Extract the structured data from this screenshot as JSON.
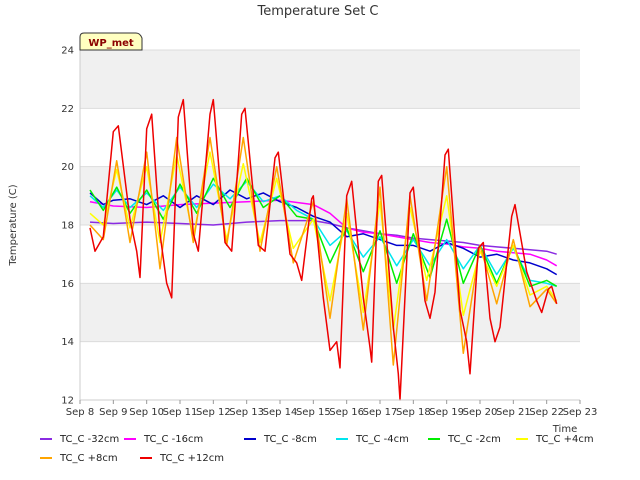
{
  "chart_data": {
    "type": "line",
    "title": "Temperature Set C",
    "xlabel": "Time",
    "ylabel": "Temperature (C)",
    "ylim": [
      12,
      24
    ],
    "y_ticks": [
      12,
      14,
      16,
      18,
      20,
      22,
      24
    ],
    "x_ticks": [
      "Sep 8",
      "Sep 9",
      "Sep 10",
      "Sep 11",
      "Sep 12",
      "Sep 13",
      "Sep 14",
      "Sep 15",
      "Sep 16",
      "Sep 17",
      "Sep 18",
      "Sep 19",
      "Sep 20",
      "Sep 21",
      "Sep 22",
      "Sep 23"
    ],
    "xlim_days": [
      8,
      23
    ],
    "badge": "WP_met",
    "grid": "horizontal bands",
    "legend_position": "bottom",
    "series": [
      {
        "name": "TC_C -32cm",
        "color": "#8a2be2",
        "points": [
          [
            8.3,
            18.1
          ],
          [
            9,
            18.05
          ],
          [
            10,
            18.1
          ],
          [
            11,
            18.05
          ],
          [
            12,
            18.0
          ],
          [
            13,
            18.1
          ],
          [
            14,
            18.15
          ],
          [
            15,
            18.15
          ],
          [
            15.5,
            18.05
          ],
          [
            16,
            17.9
          ],
          [
            16.5,
            17.8
          ],
          [
            17,
            17.7
          ],
          [
            17.5,
            17.65
          ],
          [
            18,
            17.55
          ],
          [
            18.5,
            17.5
          ],
          [
            19,
            17.45
          ],
          [
            19.5,
            17.4
          ],
          [
            20,
            17.3
          ],
          [
            20.5,
            17.25
          ],
          [
            21,
            17.2
          ],
          [
            21.5,
            17.15
          ],
          [
            22,
            17.1
          ],
          [
            22.3,
            17.0
          ]
        ]
      },
      {
        "name": "TC_C -16cm",
        "color": "#ff00ff",
        "points": [
          [
            8.3,
            18.8
          ],
          [
            9,
            18.65
          ],
          [
            10,
            18.6
          ],
          [
            11,
            18.7
          ],
          [
            12,
            18.75
          ],
          [
            13,
            18.8
          ],
          [
            14,
            18.85
          ],
          [
            15,
            18.7
          ],
          [
            15.5,
            18.4
          ],
          [
            16,
            17.9
          ],
          [
            16.5,
            17.75
          ],
          [
            17,
            17.7
          ],
          [
            17.5,
            17.6
          ],
          [
            18,
            17.5
          ],
          [
            18.5,
            17.4
          ],
          [
            19,
            17.35
          ],
          [
            19.5,
            17.25
          ],
          [
            20,
            17.2
          ],
          [
            20.5,
            17.1
          ],
          [
            21,
            17.05
          ],
          [
            21.5,
            17.0
          ],
          [
            22,
            16.8
          ],
          [
            22.3,
            16.6
          ]
        ]
      },
      {
        "name": "TC_C -8cm",
        "color": "#0000cd",
        "points": [
          [
            8.3,
            19.1
          ],
          [
            8.7,
            18.7
          ],
          [
            9,
            18.85
          ],
          [
            9.5,
            18.9
          ],
          [
            10,
            18.7
          ],
          [
            10.5,
            19.0
          ],
          [
            11,
            18.6
          ],
          [
            11.5,
            19.0
          ],
          [
            12,
            18.7
          ],
          [
            12.5,
            19.2
          ],
          [
            13,
            18.9
          ],
          [
            13.5,
            19.1
          ],
          [
            14,
            18.8
          ],
          [
            14.5,
            18.6
          ],
          [
            15,
            18.3
          ],
          [
            15.5,
            18.1
          ],
          [
            16,
            17.6
          ],
          [
            16.5,
            17.7
          ],
          [
            17,
            17.5
          ],
          [
            17.5,
            17.3
          ],
          [
            18,
            17.3
          ],
          [
            18.5,
            17.1
          ],
          [
            19,
            17.4
          ],
          [
            19.5,
            17.2
          ],
          [
            20,
            16.9
          ],
          [
            20.5,
            17.0
          ],
          [
            21,
            16.8
          ],
          [
            21.5,
            16.7
          ],
          [
            22,
            16.5
          ],
          [
            22.3,
            16.3
          ]
        ]
      },
      {
        "name": "TC_C -4cm",
        "color": "#00e5ee",
        "points": [
          [
            8.3,
            19.0
          ],
          [
            8.7,
            18.6
          ],
          [
            9.1,
            19.2
          ],
          [
            9.5,
            18.6
          ],
          [
            10,
            19.1
          ],
          [
            10.5,
            18.5
          ],
          [
            11,
            19.3
          ],
          [
            11.5,
            18.6
          ],
          [
            12,
            19.4
          ],
          [
            12.5,
            18.9
          ],
          [
            13,
            19.5
          ],
          [
            13.5,
            18.8
          ],
          [
            14,
            19.0
          ],
          [
            14.5,
            18.5
          ],
          [
            15,
            18.2
          ],
          [
            15.5,
            17.3
          ],
          [
            16,
            17.8
          ],
          [
            16.5,
            16.9
          ],
          [
            17,
            17.6
          ],
          [
            17.5,
            16.6
          ],
          [
            18,
            17.5
          ],
          [
            18.5,
            16.6
          ],
          [
            19,
            17.5
          ],
          [
            19.5,
            16.5
          ],
          [
            20,
            17.3
          ],
          [
            20.5,
            16.3
          ],
          [
            21,
            17.2
          ],
          [
            21.5,
            16.1
          ],
          [
            22,
            16.0
          ],
          [
            22.3,
            15.9
          ]
        ]
      },
      {
        "name": "TC_C -2cm",
        "color": "#00ee00",
        "points": [
          [
            8.3,
            19.2
          ],
          [
            8.7,
            18.5
          ],
          [
            9.1,
            19.3
          ],
          [
            9.5,
            18.4
          ],
          [
            10,
            19.2
          ],
          [
            10.5,
            18.2
          ],
          [
            11,
            19.4
          ],
          [
            11.5,
            18.4
          ],
          [
            12,
            19.6
          ],
          [
            12.5,
            18.6
          ],
          [
            13,
            19.6
          ],
          [
            13.5,
            18.6
          ],
          [
            14,
            19.0
          ],
          [
            14.5,
            18.3
          ],
          [
            15,
            18.2
          ],
          [
            15.5,
            16.7
          ],
          [
            16,
            17.9
          ],
          [
            16.5,
            16.4
          ],
          [
            17,
            17.8
          ],
          [
            17.5,
            16.0
          ],
          [
            18,
            17.7
          ],
          [
            18.5,
            16.2
          ],
          [
            19,
            18.2
          ],
          [
            19.5,
            16.0
          ],
          [
            20,
            17.3
          ],
          [
            20.5,
            16.0
          ],
          [
            21,
            17.3
          ],
          [
            21.5,
            15.9
          ],
          [
            22,
            16.1
          ],
          [
            22.3,
            15.9
          ]
        ]
      },
      {
        "name": "TC_C +4cm",
        "color": "#ffff00",
        "points": [
          [
            8.3,
            18.4
          ],
          [
            8.7,
            18.0
          ],
          [
            9.1,
            19.9
          ],
          [
            9.5,
            17.9
          ],
          [
            10,
            20.0
          ],
          [
            10.4,
            17.4
          ],
          [
            10.9,
            20.4
          ],
          [
            11.4,
            17.6
          ],
          [
            11.9,
            20.5
          ],
          [
            12.4,
            17.5
          ],
          [
            12.9,
            20.1
          ],
          [
            13.4,
            17.4
          ],
          [
            13.9,
            19.6
          ],
          [
            14.4,
            17.2
          ],
          [
            15,
            18.2
          ],
          [
            15.5,
            15.4
          ],
          [
            16,
            18.4
          ],
          [
            16.5,
            15.0
          ],
          [
            17,
            18.8
          ],
          [
            17.4,
            14.4
          ],
          [
            17.9,
            18.6
          ],
          [
            18.4,
            16.1
          ],
          [
            19,
            19.0
          ],
          [
            19.5,
            14.9
          ],
          [
            20,
            17.1
          ],
          [
            20.5,
            15.9
          ],
          [
            21,
            17.3
          ],
          [
            21.5,
            15.6
          ],
          [
            22,
            15.9
          ],
          [
            22.3,
            15.4
          ]
        ]
      },
      {
        "name": "TC_C +8cm",
        "color": "#ffa500",
        "points": [
          [
            8.3,
            18.0
          ],
          [
            8.7,
            17.5
          ],
          [
            9.1,
            20.2
          ],
          [
            9.5,
            17.4
          ],
          [
            10,
            20.5
          ],
          [
            10.4,
            16.5
          ],
          [
            10.9,
            21.0
          ],
          [
            11.4,
            17.4
          ],
          [
            11.9,
            21.0
          ],
          [
            12.4,
            17.3
          ],
          [
            12.9,
            21.0
          ],
          [
            13.4,
            17.1
          ],
          [
            13.9,
            20.0
          ],
          [
            14.4,
            16.7
          ],
          [
            15,
            18.8
          ],
          [
            15.5,
            14.8
          ],
          [
            16,
            18.9
          ],
          [
            16.5,
            14.4
          ],
          [
            17,
            19.3
          ],
          [
            17.4,
            13.2
          ],
          [
            17.9,
            19.0
          ],
          [
            18.4,
            15.4
          ],
          [
            19,
            20.0
          ],
          [
            19.5,
            13.6
          ],
          [
            20,
            17.3
          ],
          [
            20.5,
            15.3
          ],
          [
            21,
            17.5
          ],
          [
            21.5,
            15.2
          ],
          [
            22,
            15.8
          ],
          [
            22.3,
            15.3
          ]
        ]
      },
      {
        "name": "TC_C +12cm",
        "color": "#ee0000",
        "points": [
          [
            8.3,
            17.9
          ],
          [
            8.45,
            17.1
          ],
          [
            8.7,
            17.6
          ],
          [
            9.0,
            21.2
          ],
          [
            9.15,
            21.4
          ],
          [
            9.5,
            18.2
          ],
          [
            9.7,
            17.1
          ],
          [
            9.8,
            16.2
          ],
          [
            10.0,
            21.3
          ],
          [
            10.15,
            21.8
          ],
          [
            10.4,
            17.7
          ],
          [
            10.6,
            16.0
          ],
          [
            10.75,
            15.5
          ],
          [
            10.95,
            21.7
          ],
          [
            11.1,
            22.3
          ],
          [
            11.4,
            17.7
          ],
          [
            11.55,
            17.1
          ],
          [
            11.9,
            21.8
          ],
          [
            12.0,
            22.3
          ],
          [
            12.35,
            17.4
          ],
          [
            12.55,
            17.1
          ],
          [
            12.85,
            21.8
          ],
          [
            12.95,
            22.0
          ],
          [
            13.35,
            17.3
          ],
          [
            13.55,
            17.1
          ],
          [
            13.85,
            20.3
          ],
          [
            13.95,
            20.5
          ],
          [
            14.3,
            17.0
          ],
          [
            14.5,
            16.7
          ],
          [
            14.65,
            16.1
          ],
          [
            14.95,
            18.9
          ],
          [
            15.0,
            19.0
          ],
          [
            15.3,
            15.5
          ],
          [
            15.5,
            13.7
          ],
          [
            15.7,
            14.0
          ],
          [
            15.8,
            13.1
          ],
          [
            16.0,
            19.0
          ],
          [
            16.15,
            19.5
          ],
          [
            16.5,
            15.5
          ],
          [
            16.7,
            13.8
          ],
          [
            16.75,
            13.3
          ],
          [
            16.95,
            19.5
          ],
          [
            17.05,
            19.7
          ],
          [
            17.4,
            14.5
          ],
          [
            17.55,
            12.9
          ],
          [
            17.6,
            12.0
          ],
          [
            17.9,
            19.1
          ],
          [
            18.0,
            19.3
          ],
          [
            18.35,
            15.4
          ],
          [
            18.5,
            14.8
          ],
          [
            18.65,
            15.7
          ],
          [
            18.95,
            20.4
          ],
          [
            19.05,
            20.6
          ],
          [
            19.4,
            15.1
          ],
          [
            19.6,
            14.0
          ],
          [
            19.7,
            12.9
          ],
          [
            19.95,
            17.2
          ],
          [
            20.1,
            17.4
          ],
          [
            20.3,
            14.8
          ],
          [
            20.45,
            14.0
          ],
          [
            20.6,
            14.5
          ],
          [
            20.95,
            18.3
          ],
          [
            21.05,
            18.7
          ],
          [
            21.4,
            16.4
          ],
          [
            21.7,
            15.4
          ],
          [
            21.85,
            15.0
          ],
          [
            22.05,
            15.8
          ],
          [
            22.15,
            15.9
          ],
          [
            22.3,
            15.3
          ]
        ]
      }
    ]
  }
}
